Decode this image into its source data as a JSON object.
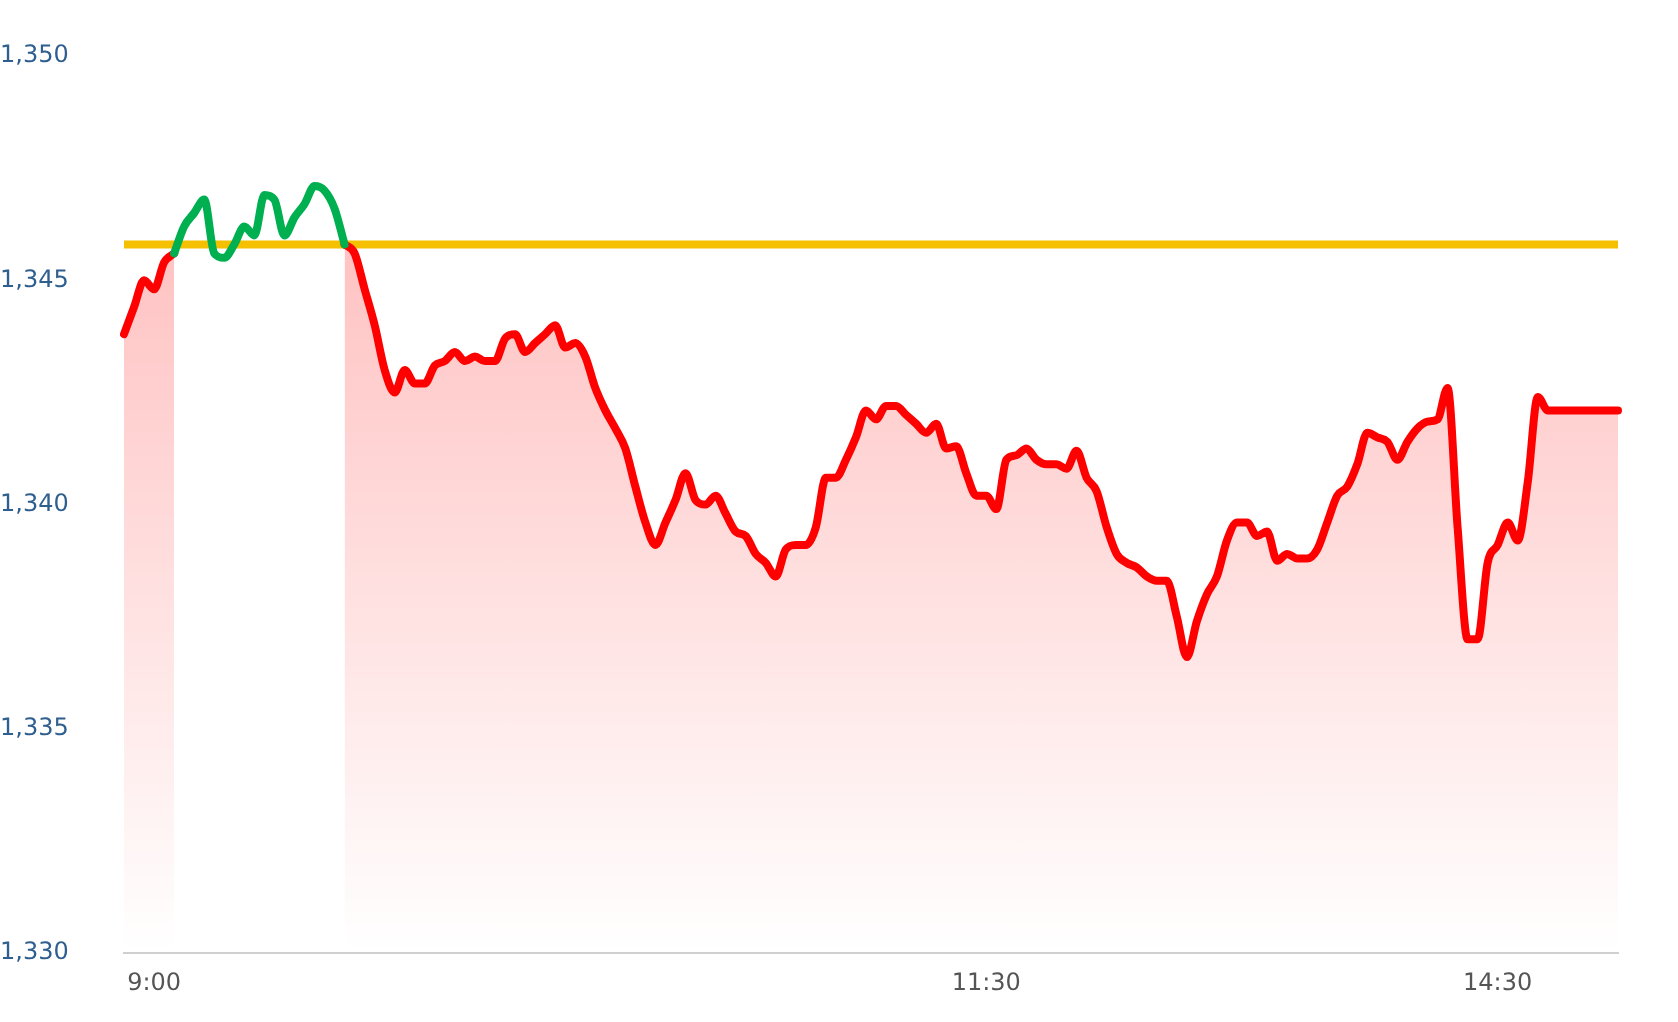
{
  "chart_data": {
    "type": "area",
    "categories": [
      null,
      null,
      null,
      "9:00",
      null,
      null,
      null,
      null,
      null,
      null,
      null,
      null,
      null,
      null,
      null,
      null,
      null,
      null,
      null,
      null,
      null,
      null,
      null,
      null,
      null,
      null,
      null,
      null,
      null,
      null,
      null,
      null,
      null,
      null,
      null,
      null,
      null,
      null,
      null,
      null,
      null,
      null,
      null,
      null,
      null,
      null,
      null,
      null,
      null,
      null,
      null,
      null,
      null,
      null,
      null,
      null,
      null,
      null,
      null,
      null,
      null,
      null,
      null,
      null,
      null,
      null,
      null,
      null,
      null,
      null,
      null,
      null,
      null,
      null,
      null,
      null,
      null,
      null,
      null,
      null,
      null,
      null,
      null,
      null,
      null,
      null,
      "11:30",
      null,
      null,
      null,
      null,
      null,
      null,
      null,
      null,
      null,
      null,
      null,
      null,
      null,
      null,
      null,
      null,
      null,
      null,
      null,
      null,
      null,
      null,
      null,
      null,
      null,
      null,
      null,
      null,
      null,
      null,
      null,
      null,
      null,
      null,
      null,
      null,
      null,
      null,
      null,
      null,
      null,
      null,
      null,
      null,
      null,
      null,
      null,
      null,
      null,
      null,
      "14:30",
      null,
      null,
      null,
      null,
      null,
      null,
      null,
      null,
      null,
      null,
      null,
      null
    ],
    "series": [
      {
        "color": "#ff0000",
        "values": [
          1343.8,
          1344.4,
          1345.0,
          1344.8,
          1345.4,
          1345.6,
          null,
          null,
          null,
          null,
          null,
          null,
          null,
          null,
          null,
          null,
          null,
          null,
          null,
          null,
          null,
          null,
          1345.8,
          1345.6,
          1344.8,
          1344.0,
          1343.0,
          1342.5,
          1343.0,
          1342.7,
          1342.7,
          1343.1,
          1343.2,
          1343.4,
          1343.2,
          1343.3,
          1343.2,
          1343.2,
          1343.7,
          1343.8,
          1343.4,
          1343.6,
          1343.8,
          1344.0,
          1343.5,
          1343.6,
          1343.3,
          1342.6,
          1342.1,
          1341.7,
          1341.25,
          1340.4,
          1339.6,
          1339.1,
          1339.6,
          1340.1,
          1340.7,
          1340.1,
          1340.0,
          1340.2,
          1339.8,
          1339.4,
          1339.3,
          1338.9,
          1338.7,
          1338.4,
          1339.0,
          1339.1,
          1339.1,
          1339.5,
          1340.6,
          1340.6,
          1341.0,
          1341.5,
          1342.1,
          1341.9,
          1342.2,
          1342.2,
          1342.0,
          1341.8,
          1341.6,
          1341.8,
          1341.25,
          1341.3,
          1340.7,
          1340.2,
          1340.2,
          1339.9,
          1341.0,
          1341.1,
          1341.25,
          1341.0,
          1340.9,
          1340.9,
          1340.8,
          1341.2,
          1340.6,
          1340.3,
          1339.5,
          1338.9,
          1338.7,
          1338.6,
          1338.4,
          1338.3,
          1338.3,
          1337.5,
          1336.6,
          1337.4,
          1338.0,
          1338.4,
          1339.2,
          1339.6,
          1339.6,
          1339.3,
          1339.4,
          1338.75,
          1338.9,
          1338.8,
          1338.8,
          1339.0,
          1339.6,
          1340.2,
          1340.4,
          1340.9,
          1341.6,
          1341.5,
          1341.4,
          1341.0,
          1341.4,
          1341.7,
          1341.85,
          1341.9,
          1342.6,
          1339.5,
          1337.0,
          1337.0,
          1338.7,
          1339.1,
          1339.6,
          1339.2,
          1340.5,
          1342.4,
          1342.1,
          1342.1,
          1342.1,
          1342.1,
          1342.1,
          1342.1,
          1342.1,
          1342.1
        ]
      },
      {
        "type": "line",
        "color": "#00b050",
        "values": [
          null,
          null,
          null,
          null,
          null,
          1345.6,
          1346.2,
          1346.5,
          1346.8,
          1345.6,
          1345.5,
          1345.8,
          1346.2,
          1346.0,
          1346.9,
          1346.8,
          1346.0,
          1346.4,
          1346.7,
          1347.1,
          1347.0,
          1346.6,
          1345.8,
          null,
          null,
          null,
          null,
          null,
          null,
          null,
          null,
          null,
          null,
          null,
          null,
          null,
          null,
          null,
          null,
          null,
          null,
          null,
          null,
          null,
          null,
          null,
          null,
          null,
          null,
          null,
          null,
          null,
          null,
          null,
          null,
          null,
          null,
          null,
          null,
          null,
          null,
          null,
          null,
          null,
          null,
          null,
          null,
          null,
          null,
          null,
          null,
          null,
          null,
          null,
          null,
          null,
          null,
          null,
          null,
          null,
          null,
          null,
          null,
          null,
          null,
          null,
          null,
          null,
          null,
          null,
          null,
          null,
          null,
          null,
          null,
          null,
          null,
          null,
          null,
          null,
          null,
          null,
          null,
          null,
          null,
          null,
          null,
          null,
          null,
          null,
          null,
          null,
          null,
          null,
          null,
          null,
          null,
          null,
          null,
          null,
          null,
          null,
          null,
          null,
          null,
          null,
          null,
          null,
          null,
          null,
          null,
          null,
          null,
          null,
          null,
          null,
          null,
          null,
          null,
          null,
          null,
          null,
          null,
          null,
          null,
          null,
          null,
          null,
          null,
          null
        ]
      }
    ],
    "ylim": [
      1330,
      1350
    ],
    "yticks": [
      {
        "value": 1330,
        "label": "1,330"
      },
      {
        "value": 1335,
        "label": "1,335"
      },
      {
        "value": 1340,
        "label": "1,340"
      },
      {
        "value": 1345,
        "label": "1,345"
      },
      {
        "value": 1350,
        "label": "1,350"
      }
    ],
    "ref_lines": [
      {
        "axis": "y",
        "value": 1345.8,
        "color": "#f5c000"
      }
    ],
    "grid": false,
    "legend": false,
    "marker": "none",
    "line_style": "solid"
  }
}
